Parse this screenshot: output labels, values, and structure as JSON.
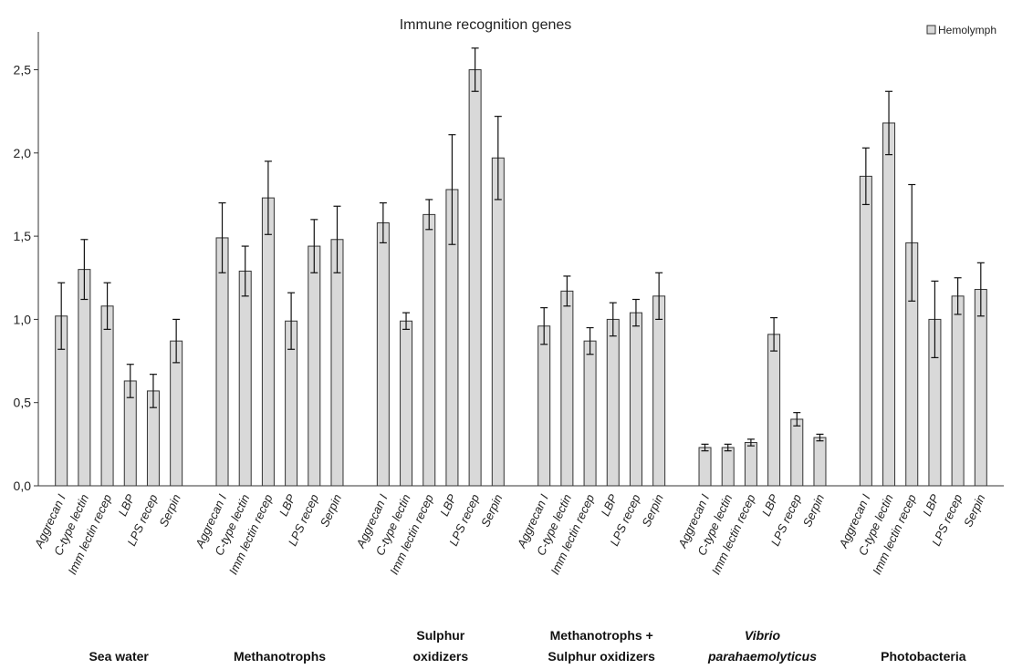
{
  "chart_data": {
    "type": "bar",
    "title": "Immune recognition genes",
    "xlabel": "",
    "ylabel": "",
    "ylim": [
      0,
      2.7
    ],
    "yticks": [
      "0,0",
      "0,5",
      "1,0",
      "1,5",
      "2,0",
      "2,5"
    ],
    "ytick_values": [
      0,
      0.5,
      1.0,
      1.5,
      2.0,
      2.5
    ],
    "legend": {
      "placement": "top-right",
      "entries": [
        "Hemolymph"
      ]
    },
    "colors": {
      "bar_fill": "#d9d9d9",
      "bar_stroke": "#333333",
      "axis": "#333333"
    },
    "grid": false,
    "categories": [
      "Aggrecan I",
      "C-type lectin",
      "Imm lectin recep",
      "LBP",
      "LPS recep",
      "Serpin"
    ],
    "groups": [
      {
        "label_lines": [
          "Sea water"
        ],
        "italic": false,
        "values": [
          1.02,
          1.3,
          1.08,
          0.63,
          0.57,
          0.87
        ],
        "errors": [
          0.2,
          0.18,
          0.14,
          0.1,
          0.1,
          0.13
        ]
      },
      {
        "label_lines": [
          "Methanotrophs"
        ],
        "italic": false,
        "values": [
          1.49,
          1.29,
          1.73,
          0.99,
          1.44,
          1.48
        ],
        "errors": [
          0.21,
          0.15,
          0.22,
          0.17,
          0.16,
          0.2
        ]
      },
      {
        "label_lines": [
          "Sulphur",
          "oxidizers"
        ],
        "italic": false,
        "values": [
          1.58,
          0.99,
          1.63,
          1.78,
          2.5,
          1.97
        ],
        "errors": [
          0.12,
          0.05,
          0.09,
          0.33,
          0.13,
          0.25
        ]
      },
      {
        "label_lines": [
          "Methanotrophs +",
          "Sulphur oxidizers"
        ],
        "italic": false,
        "values": [
          0.96,
          1.17,
          0.87,
          1.0,
          1.04,
          1.14
        ],
        "errors": [
          0.11,
          0.09,
          0.08,
          0.1,
          0.08,
          0.14
        ]
      },
      {
        "label_lines": [
          "Vibrio",
          "parahaemolyticus"
        ],
        "italic": true,
        "values": [
          0.23,
          0.23,
          0.26,
          0.91,
          0.4,
          0.29
        ],
        "errors": [
          0.02,
          0.02,
          0.02,
          0.1,
          0.04,
          0.02
        ]
      },
      {
        "label_lines": [
          "Photobacteria"
        ],
        "italic": false,
        "values": [
          1.86,
          2.18,
          1.46,
          1.0,
          1.14,
          1.18
        ],
        "errors": [
          0.17,
          0.19,
          0.35,
          0.23,
          0.11,
          0.16
        ]
      }
    ]
  }
}
